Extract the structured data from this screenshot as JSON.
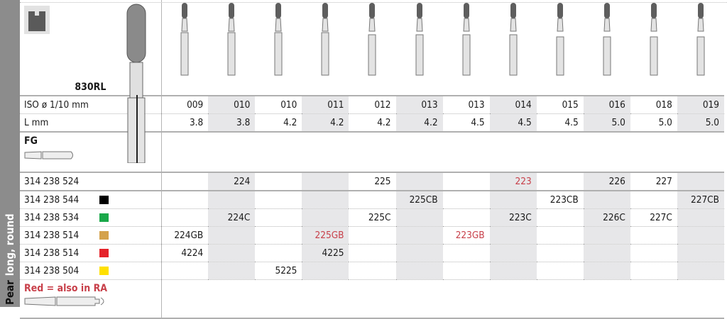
{
  "side_label": {
    "main": "Pear",
    "sub": "long, round"
  },
  "model": "830RL",
  "shank_fg": "FG",
  "iso_label": "ISO ø 1/10 mm",
  "l_label": "L mm",
  "iso": [
    "009",
    "010",
    "010",
    "011",
    "012",
    "013",
    "013",
    "014",
    "015",
    "016",
    "018",
    "019"
  ],
  "length": [
    "3.8",
    "3.8",
    "4.2",
    "4.2",
    "4.2",
    "4.2",
    "4.5",
    "4.5",
    "4.5",
    "5.0",
    "5.0",
    "5.0"
  ],
  "colors": {
    "red_text": "#c8404a",
    "shade": "#e7e7e9",
    "band": "#8c8c8c"
  },
  "rows": [
    {
      "ref": "314 238 524",
      "swatch": null,
      "cells": [
        "",
        "224",
        "",
        "",
        "225",
        "",
        "",
        "223",
        "",
        "226",
        "227",
        ""
      ],
      "red": [
        7
      ]
    },
    {
      "ref": "314 238 544",
      "swatch": "#000000",
      "cells": [
        "",
        "",
        "",
        "",
        "",
        "225CB",
        "",
        "",
        "223CB",
        "",
        "",
        "227CB"
      ],
      "red": []
    },
    {
      "ref": "314 238 534",
      "swatch": "#1aa84a",
      "cells": [
        "",
        "224C",
        "",
        "",
        "225C",
        "",
        "",
        "223C",
        "",
        "226C",
        "227C",
        ""
      ],
      "red": []
    },
    {
      "ref": "314 238 514",
      "swatch": "#d4a24c",
      "cells": [
        "224GB",
        "",
        "",
        "225GB",
        "",
        "",
        "223GB",
        "",
        "",
        "",
        "",
        ""
      ],
      "red": [
        3,
        6
      ]
    },
    {
      "ref": "314 238 514",
      "swatch": "#e5232a",
      "cells": [
        "4224",
        "",
        "",
        "4225",
        "",
        "",
        "",
        "",
        "",
        "",
        "",
        ""
      ],
      "red": []
    },
    {
      "ref": "314 238 504",
      "swatch": "#ffe000",
      "cells": [
        "",
        "",
        "5225",
        "",
        "",
        "",
        "",
        "",
        "",
        "",
        "",
        ""
      ],
      "red": []
    }
  ],
  "note": "Red = also in RA",
  "icons": {
    "profile": "bur-profile-icon",
    "bur": "pear-bur-icon",
    "fg_shank": "fg-shank-icon",
    "ra_shank": "ra-shank-icon"
  }
}
